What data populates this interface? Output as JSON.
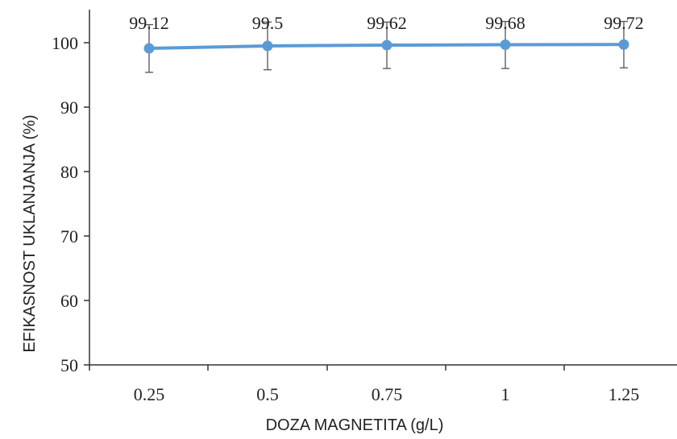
{
  "chart_data": {
    "type": "line",
    "title": "",
    "xlabel": "DOZA MAGNETITA (g/L)",
    "ylabel": "EFIKASNOST UKLANJANJA  (%)",
    "categories": [
      "0.25",
      "0.5",
      "0.75",
      "1",
      "1.25"
    ],
    "y_ticks": [
      "50",
      "60",
      "70",
      "80",
      "90",
      "100"
    ],
    "ylim": [
      50,
      105
    ],
    "grid": false,
    "legend": "none",
    "series": [
      {
        "values": [
          99.12,
          99.5,
          99.62,
          99.68,
          99.72
        ],
        "data_labels": [
          "99.12",
          "99.5",
          "99.62",
          "99.68",
          "99.72"
        ],
        "error_low": [
          95.4,
          95.8,
          96.0,
          96.0,
          96.1
        ],
        "error_high": [
          102.8,
          103.2,
          103.2,
          103.3,
          103.3
        ]
      }
    ],
    "colors": {
      "line": "#5b9bd5",
      "marker": "#5b9bd5",
      "error_bar": "#555555",
      "axis": "#333333"
    }
  }
}
